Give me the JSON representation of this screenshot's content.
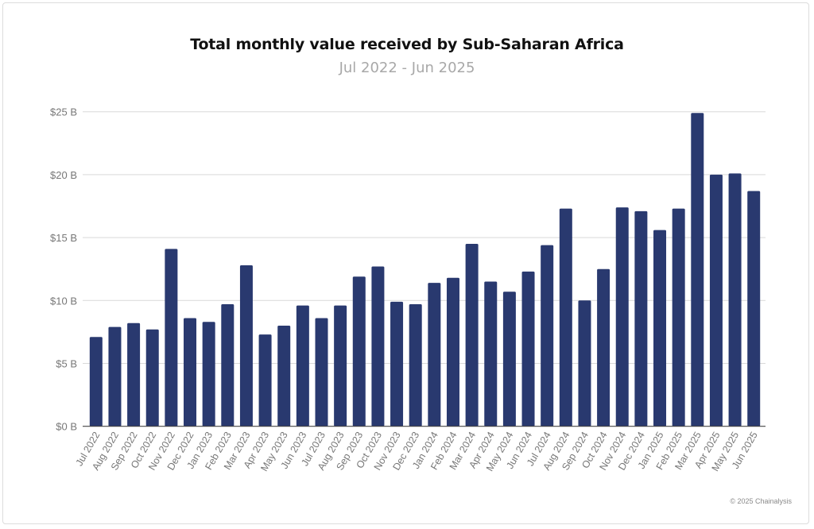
{
  "chart_data": {
    "type": "bar",
    "title": "Total monthly value received by Sub-Saharan Africa",
    "subtitle": "Jul 2022 - Jun 2025",
    "xlabel": "",
    "ylabel": "",
    "ylim": [
      0,
      25
    ],
    "y_ticks": [
      0,
      5,
      10,
      15,
      20,
      25
    ],
    "y_tick_labels": [
      "$0 B",
      "$5 B",
      "$10 B",
      "$15 B",
      "$20 B",
      "$25 B"
    ],
    "grid": true,
    "bar_color": "#29396f",
    "categories": [
      "Jul 2022",
      "Aug 2022",
      "Sep 2022",
      "Oct 2022",
      "Nov 2022",
      "Dec 2022",
      "Jan 2023",
      "Feb 2023",
      "Mar 2023",
      "Apr 2023",
      "May 2023",
      "Jun 2023",
      "Jul 2023",
      "Aug 2023",
      "Sep 2023",
      "Oct 2023",
      "Nov 2023",
      "Dec 2023",
      "Jan 2024",
      "Feb 2024",
      "Mar 2024",
      "Apr 2024",
      "May 2024",
      "Jun 2024",
      "Jul 2024",
      "Aug 2024",
      "Sep 2024",
      "Oct 2024",
      "Nov 2024",
      "Dec 2024",
      "Jan 2025",
      "Feb 2025",
      "Mar 2025",
      "Apr 2025",
      "May 2025",
      "Jun 2025"
    ],
    "values": [
      7.1,
      7.9,
      8.2,
      7.7,
      14.1,
      8.6,
      8.3,
      9.7,
      12.8,
      7.3,
      8.0,
      9.6,
      8.6,
      9.6,
      11.9,
      12.7,
      9.9,
      9.7,
      11.4,
      11.8,
      14.5,
      11.5,
      10.7,
      12.3,
      14.4,
      17.3,
      10.0,
      12.5,
      17.4,
      17.1,
      15.6,
      17.3,
      24.9,
      20.0,
      20.1,
      18.7
    ]
  },
  "footer": {
    "copyright": "© 2025 Chainalysis"
  }
}
